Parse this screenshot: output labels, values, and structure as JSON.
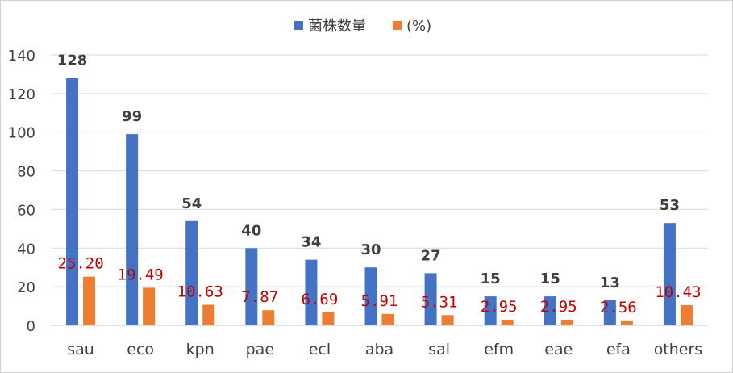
{
  "chart_data": {
    "type": "bar",
    "categories": [
      "sau",
      "eco",
      "kpn",
      "pae",
      "ecl",
      "aba",
      "sal",
      "efm",
      "eae",
      "efa",
      "others"
    ],
    "series": [
      {
        "name": "菌株数量",
        "color": "#4472c4",
        "values": [
          128,
          99,
          54,
          40,
          34,
          30,
          27,
          15,
          15,
          13,
          53
        ],
        "labels": [
          "128",
          "99",
          "54",
          "40",
          "34",
          "30",
          "27",
          "15",
          "15",
          "13",
          "53"
        ]
      },
      {
        "name": "(%)",
        "color": "#ed7d31",
        "values": [
          25.2,
          19.49,
          10.63,
          7.87,
          6.69,
          5.91,
          5.31,
          2.95,
          2.95,
          2.56,
          10.43
        ],
        "labels": [
          "25.20",
          "19.49",
          "10.63",
          "7.87",
          "6.69",
          "5.91",
          "5.31",
          "2.95",
          "2.95",
          "2.56",
          "10.43"
        ]
      }
    ],
    "yticks": [
      "0",
      "20",
      "40",
      "60",
      "80",
      "100",
      "120",
      "140"
    ],
    "ylim": [
      0,
      140
    ],
    "grid": true,
    "legend_position": "top-center",
    "pct_label_color": "#c00000"
  }
}
